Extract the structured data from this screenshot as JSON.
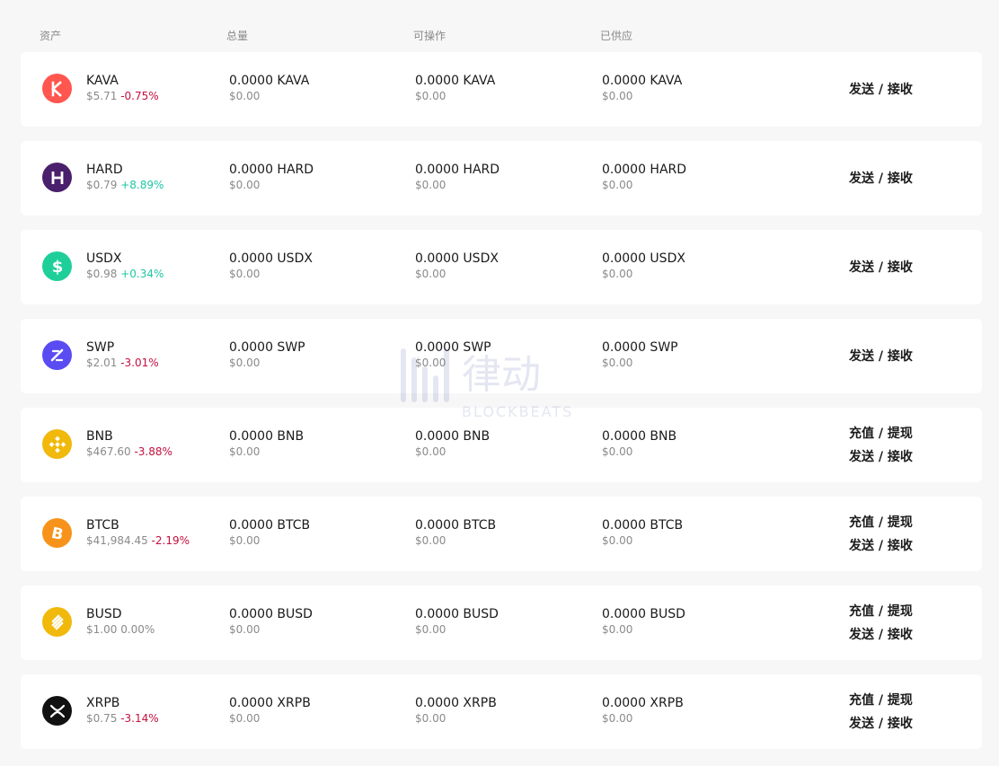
{
  "headers": {
    "asset": "资产",
    "total": "总量",
    "available": "可操作",
    "supplied": "已供应"
  },
  "rows": [
    {
      "symbol": "KAVA",
      "price": "$5.71",
      "change": "-0.75%",
      "change_dir": "neg",
      "total": "0.0000 KAVA",
      "total_usd": "$0.00",
      "available": "0.0000 KAVA",
      "available_usd": "$0.00",
      "supplied": "0.0000 KAVA",
      "supplied_usd": "$0.00",
      "icon": "kava-logo-icon",
      "icon_color": "#ff564f",
      "actions": [
        "发送 / 接收"
      ]
    },
    {
      "symbol": "HARD",
      "price": "$0.79",
      "change": "+8.89%",
      "change_dir": "pos",
      "total": "0.0000 HARD",
      "total_usd": "$0.00",
      "available": "0.0000 HARD",
      "available_usd": "$0.00",
      "supplied": "0.0000 HARD",
      "supplied_usd": "$0.00",
      "icon": "hard-logo-icon",
      "icon_color": "#4a1f6b",
      "actions": [
        "发送 / 接收"
      ]
    },
    {
      "symbol": "USDX",
      "price": "$0.98",
      "change": "+0.34%",
      "change_dir": "pos",
      "total": "0.0000 USDX",
      "total_usd": "$0.00",
      "available": "0.0000 USDX",
      "available_usd": "$0.00",
      "supplied": "0.0000 USDX",
      "supplied_usd": "$0.00",
      "icon": "usdx-logo-icon",
      "icon_color": "#1fcf9a",
      "actions": [
        "发送 / 接收"
      ]
    },
    {
      "symbol": "SWP",
      "price": "$2.01",
      "change": "-3.01%",
      "change_dir": "neg",
      "total": "0.0000 SWP",
      "total_usd": "$0.00",
      "available": "0.0000 SWP",
      "available_usd": "$0.00",
      "supplied": "0.0000 SWP",
      "supplied_usd": "$0.00",
      "icon": "swp-logo-icon",
      "icon_color": "#5a4cf2",
      "actions": [
        "发送 / 接收"
      ]
    },
    {
      "symbol": "BNB",
      "price": "$467.60",
      "change": "-3.88%",
      "change_dir": "neg",
      "total": "0.0000 BNB",
      "total_usd": "$0.00",
      "available": "0.0000 BNB",
      "available_usd": "$0.00",
      "supplied": "0.0000 BNB",
      "supplied_usd": "$0.00",
      "icon": "bnb-logo-icon",
      "icon_color": "#f0b90b",
      "actions": [
        "充值 / 提现",
        "发送 / 接收"
      ]
    },
    {
      "symbol": "BTCB",
      "price": "$41,984.45",
      "change": "-2.19%",
      "change_dir": "neg",
      "total": "0.0000 BTCB",
      "total_usd": "$0.00",
      "available": "0.0000 BTCB",
      "available_usd": "$0.00",
      "supplied": "0.0000 BTCB",
      "supplied_usd": "$0.00",
      "icon": "bitcoin-logo-icon",
      "icon_color": "#f7931a",
      "actions": [
        "充值 / 提现",
        "发送 / 接收"
      ]
    },
    {
      "symbol": "BUSD",
      "price": "$1.00",
      "change": "0.00%",
      "change_dir": "zero",
      "total": "0.0000 BUSD",
      "total_usd": "$0.00",
      "available": "0.0000 BUSD",
      "available_usd": "$0.00",
      "supplied": "0.0000 BUSD",
      "supplied_usd": "$0.00",
      "icon": "busd-logo-icon",
      "icon_color": "#f0b90b",
      "actions": [
        "充值 / 提现",
        "发送 / 接收"
      ]
    },
    {
      "symbol": "XRPB",
      "price": "$0.75",
      "change": "-3.14%",
      "change_dir": "neg",
      "total": "0.0000 XRPB",
      "total_usd": "$0.00",
      "available": "0.0000 XRPB",
      "available_usd": "$0.00",
      "supplied": "0.0000 XRPB",
      "supplied_usd": "$0.00",
      "icon": "xrp-logo-icon",
      "icon_color": "#111111",
      "actions": [
        "充值 / 提现",
        "发送 / 接收"
      ]
    }
  ],
  "watermark": {
    "text_cn": "律动",
    "text_en": "BLOCKBEATS"
  }
}
